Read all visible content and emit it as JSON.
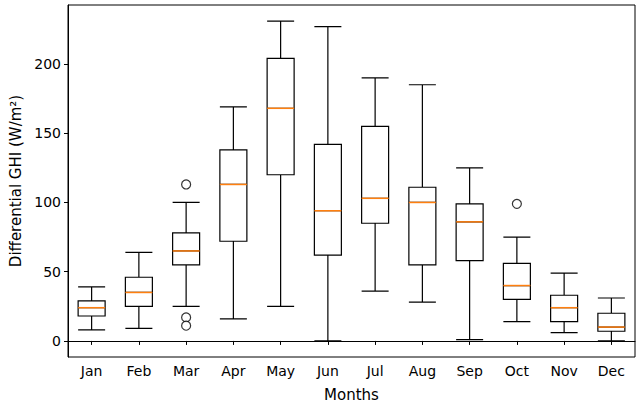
{
  "chart_data": {
    "type": "boxplot",
    "xlabel": "Months",
    "ylabel": "Differential GHI (W/m²)",
    "categories": [
      "Jan",
      "Feb",
      "Mar",
      "Apr",
      "May",
      "Jun",
      "Jul",
      "Aug",
      "Sep",
      "Oct",
      "Nov",
      "Dec"
    ],
    "boxes": [
      {
        "min": 8,
        "q1": 18,
        "median": 24,
        "q3": 29,
        "max": 39
      },
      {
        "min": 9,
        "q1": 25,
        "median": 35,
        "q3": 46,
        "max": 64
      },
      {
        "min": 25,
        "q1": 55,
        "median": 65,
        "q3": 78,
        "max": 100
      },
      {
        "min": 16,
        "q1": 72,
        "median": 113,
        "q3": 138,
        "max": 169
      },
      {
        "min": 25,
        "q1": 120,
        "median": 168,
        "q3": 204,
        "max": 231
      },
      {
        "min": 0,
        "q1": 62,
        "median": 94,
        "q3": 142,
        "max": 227
      },
      {
        "min": 36,
        "q1": 85,
        "median": 103,
        "q3": 155,
        "max": 190
      },
      {
        "min": 28,
        "q1": 55,
        "median": 100,
        "q3": 111,
        "max": 185
      },
      {
        "min": 1,
        "q1": 58,
        "median": 86,
        "q3": 99,
        "max": 125
      },
      {
        "min": 14,
        "q1": 30,
        "median": 40,
        "q3": 56,
        "max": 75
      },
      {
        "min": 6,
        "q1": 14,
        "median": 24,
        "q3": 33,
        "max": 49
      },
      {
        "min": 0,
        "q1": 7,
        "median": 10,
        "q3": 20,
        "max": 31
      }
    ],
    "outliers": [
      [],
      [],
      [
        113,
        17,
        11
      ],
      [],
      [],
      [],
      [],
      [],
      [],
      [
        99
      ],
      [],
      []
    ],
    "color": "#000000",
    "ylim": [
      -11.6,
      242.6
    ],
    "yticks": [
      0,
      50,
      100,
      150,
      200
    ],
    "grid": false
  }
}
